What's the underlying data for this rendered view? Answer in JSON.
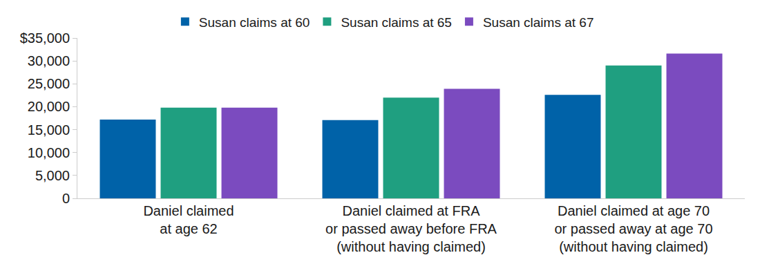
{
  "chart_data": {
    "type": "bar",
    "categories": [
      "Daniel claimed\nat age 62",
      "Daniel claimed at FRA\nor passed away before FRA\n(without having claimed)",
      "Daniel claimed at age 70\nor passed away at age 70\n(without having claimed)"
    ],
    "series": [
      {
        "name": "Susan claims at 60",
        "color": "#0062a8",
        "values": [
          17200,
          17100,
          22600
        ]
      },
      {
        "name": "Susan claims at 65",
        "color": "#1f9f80",
        "values": [
          19800,
          22000,
          29000
        ]
      },
      {
        "name": "Susan claims at 67",
        "color": "#7b4bbf",
        "values": [
          19800,
          23900,
          31600
        ]
      }
    ],
    "ylim": [
      0,
      35000
    ],
    "yticks": [
      0,
      {
        "value": 5000,
        "label": "5,000"
      },
      {
        "value": 10000,
        "label": "10,000"
      },
      {
        "value": 15000,
        "label": "15,000"
      },
      {
        "value": 20000,
        "label": "20,000"
      },
      {
        "value": 25000,
        "label": "25,000"
      },
      {
        "value": 30000,
        "label": "30,000"
      },
      {
        "value": 35000,
        "label": "$35,000"
      }
    ],
    "grid": false,
    "legend": "top"
  }
}
